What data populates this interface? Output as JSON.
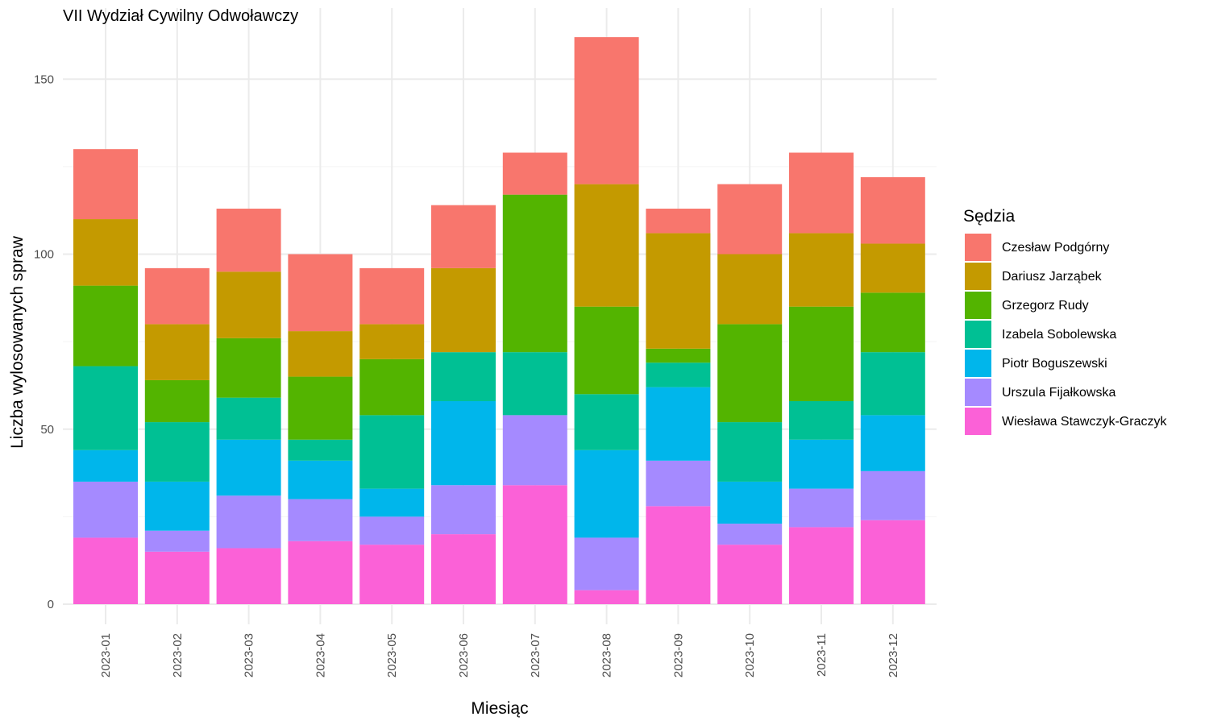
{
  "chart_data": {
    "type": "bar",
    "stacked": true,
    "title": "VII Wydział Cywilny Odwoławczy",
    "xlabel": "Miesiąc",
    "ylabel": "Liczba wylosowanych spraw",
    "ylim": [
      0,
      170
    ],
    "yticks": [
      0,
      50,
      100,
      150
    ],
    "grid": true,
    "legend": {
      "title": "Sędzia",
      "position": "right"
    },
    "categories": [
      "2023-01",
      "2023-02",
      "2023-03",
      "2023-04",
      "2023-05",
      "2023-06",
      "2023-07",
      "2023-08",
      "2023-09",
      "2023-10",
      "2023-11",
      "2023-12"
    ],
    "series": [
      {
        "name": "Czesław Podgórny",
        "color": "#F8766D",
        "values": [
          20,
          16,
          18,
          22,
          16,
          18,
          12,
          42,
          7,
          20,
          23,
          19
        ]
      },
      {
        "name": "Dariusz Jarząbek",
        "color": "#C49A00",
        "values": [
          19,
          16,
          19,
          13,
          10,
          24,
          0,
          35,
          33,
          20,
          21,
          14
        ]
      },
      {
        "name": "Grzegorz Rudy",
        "color": "#53B400",
        "values": [
          23,
          12,
          17,
          18,
          16,
          0,
          45,
          25,
          4,
          28,
          27,
          17
        ]
      },
      {
        "name": "Izabela Sobolewska",
        "color": "#00C094",
        "values": [
          24,
          17,
          12,
          6,
          21,
          14,
          18,
          16,
          7,
          17,
          11,
          18
        ]
      },
      {
        "name": "Piotr Boguszewski",
        "color": "#00B6EB",
        "values": [
          9,
          14,
          16,
          11,
          8,
          24,
          0,
          25,
          21,
          12,
          14,
          16
        ]
      },
      {
        "name": "Urszula Fijałkowska",
        "color": "#A58AFF",
        "values": [
          16,
          6,
          15,
          12,
          8,
          14,
          20,
          15,
          13,
          6,
          11,
          14
        ]
      },
      {
        "name": "Wiesława Stawczyk-Graczyk",
        "color": "#FB61D7",
        "values": [
          19,
          15,
          16,
          18,
          17,
          20,
          34,
          4,
          28,
          17,
          22,
          24
        ]
      }
    ]
  }
}
